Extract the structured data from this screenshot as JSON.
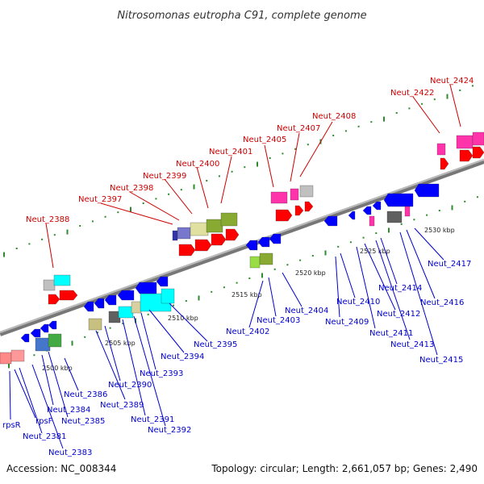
{
  "title": "Nitrosomonas eutropha C91, complete genome",
  "footer": {
    "accession": "Accession: NC_008344",
    "summary": "Topology: circular; Length: 2,661,057 bp; Genes: 2,490"
  },
  "colors": {
    "backbone": "#8c8c8c",
    "forward_label": "#cc0000",
    "reverse_label": "#0000cc",
    "tick": "#2e8b2e"
  },
  "kbp_ticks": [
    "2500 kbp",
    "2505 kbp",
    "2510 kbp",
    "2515 kbp",
    "2520 kbp",
    "2525 kbp",
    "2530 kbp"
  ],
  "forward_genes": [
    "Neut_2388",
    "Neut_2397",
    "Neut_2398",
    "Neut_2399",
    "Neut_2400",
    "Neut_2401",
    "Neut_2405",
    "Neut_2407",
    "Neut_2408",
    "Neut_2422",
    "Neut_2424"
  ],
  "reverse_genes": [
    "rpsR",
    "rpsF",
    "Neut_2381",
    "Neut_2383",
    "Neut_2384",
    "Neut_2385",
    "Neut_2386",
    "Neut_2389",
    "Neut_2390",
    "Neut_2391",
    "Neut_2392",
    "Neut_2393",
    "Neut_2394",
    "Neut_2395",
    "Neut_2402",
    "Neut_2403",
    "Neut_2404",
    "Neut_2409",
    "Neut_2410",
    "Neut_2411",
    "Neut_2412",
    "Neut_2413",
    "Neut_2414",
    "Neut_2415",
    "Neut_2416",
    "Neut_2417"
  ]
}
